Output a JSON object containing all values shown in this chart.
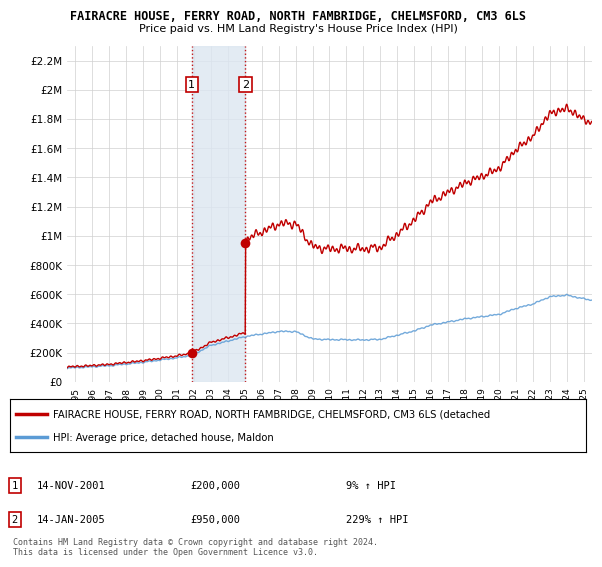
{
  "title": "FAIRACRE HOUSE, FERRY ROAD, NORTH FAMBRIDGE, CHELMSFORD, CM3 6LS",
  "subtitle": "Price paid vs. HM Land Registry's House Price Index (HPI)",
  "sale1_date_num": 2001.87,
  "sale1_price": 200000,
  "sale1_label": "14-NOV-2001",
  "sale1_hpi_pct": "9%",
  "sale2_date_num": 2005.04,
  "sale2_price": 950000,
  "sale2_label": "14-JAN-2005",
  "sale2_hpi_pct": "229%",
  "legend1": "FAIRACRE HOUSE, FERRY ROAD, NORTH FAMBRIDGE, CHELMSFORD, CM3 6LS (detached",
  "legend2": "HPI: Average price, detached house, Maldon",
  "table_note": "Contains HM Land Registry data © Crown copyright and database right 2024.\nThis data is licensed under the Open Government Licence v3.0.",
  "hpi_color": "#5b9bd5",
  "property_color": "#c00000",
  "shade_color": "#dce6f1",
  "ylim_max": 2300000,
  "yticks": [
    0,
    200000,
    400000,
    600000,
    800000,
    1000000,
    1200000,
    1400000,
    1600000,
    1800000,
    2000000,
    2200000
  ],
  "ytick_labels": [
    "£0",
    "£200K",
    "£400K",
    "£600K",
    "£800K",
    "£1M",
    "£1.2M",
    "£1.4M",
    "£1.6M",
    "£1.8M",
    "£2M",
    "£2.2M"
  ],
  "xmin": 1994.5,
  "xmax": 2025.5
}
